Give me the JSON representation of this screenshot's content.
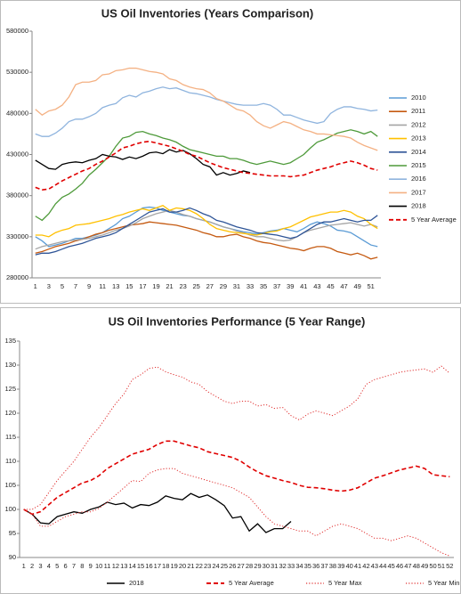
{
  "chart_data": [
    {
      "type": "line",
      "title": "US Oil Inventories (Years Comparison)",
      "legend": "right",
      "categories": [
        1,
        null,
        3,
        null,
        5,
        null,
        7,
        null,
        9,
        null,
        11,
        null,
        13,
        null,
        15,
        null,
        17,
        null,
        19,
        null,
        21,
        null,
        23,
        null,
        25,
        null,
        27,
        null,
        29,
        null,
        31,
        null,
        33,
        null,
        35,
        null,
        37,
        null,
        39,
        null,
        41,
        null,
        43,
        null,
        45,
        null,
        47,
        null,
        49,
        null,
        51,
        null
      ],
      "ylim": [
        280000,
        580000
      ],
      "yticks": [
        280000,
        330000,
        380000,
        430000,
        480000,
        530000,
        580000
      ],
      "series": [
        {
          "name": "2010",
          "color": "#5b9bd5",
          "line_style": "solid",
          "values": [
            330000,
            325000,
            318000,
            320000,
            322000,
            325000,
            328000,
            328000,
            330000,
            332000,
            335000,
            340000,
            345000,
            352000,
            355000,
            360000,
            365000,
            366000,
            365000,
            362000,
            360000,
            358000,
            356000,
            355000,
            352000,
            350000,
            348000,
            345000,
            342000,
            340000,
            338000,
            336000,
            335000,
            333000,
            335000,
            337000,
            338000,
            340000,
            338000,
            336000,
            340000,
            345000,
            348000,
            346000,
            343000,
            338000,
            337000,
            335000,
            330000,
            325000,
            320000,
            318000
          ]
        },
        {
          "name": "2011",
          "color": "#c55a11",
          "line_style": "solid",
          "values": [
            310000,
            312000,
            315000,
            318000,
            320000,
            322000,
            325000,
            327000,
            330000,
            333000,
            335000,
            338000,
            340000,
            342000,
            344000,
            345000,
            346000,
            348000,
            347000,
            346000,
            345000,
            344000,
            342000,
            340000,
            338000,
            335000,
            333000,
            330000,
            330000,
            332000,
            333000,
            330000,
            328000,
            325000,
            323000,
            322000,
            320000,
            318000,
            316000,
            315000,
            313000,
            316000,
            318000,
            318000,
            316000,
            312000,
            310000,
            308000,
            310000,
            307000,
            303000,
            305000
          ]
        },
        {
          "name": "2012",
          "color": "#a5a5a5",
          "line_style": "solid",
          "values": [
            315000,
            318000,
            320000,
            322000,
            324000,
            325000,
            326000,
            327000,
            328000,
            330000,
            332000,
            335000,
            338000,
            340000,
            343000,
            347000,
            352000,
            355000,
            358000,
            360000,
            362000,
            360000,
            357000,
            355000,
            352000,
            350000,
            348000,
            345000,
            342000,
            340000,
            337000,
            335000,
            332000,
            330000,
            330000,
            328000,
            326000,
            325000,
            326000,
            330000,
            335000,
            338000,
            340000,
            342000,
            344000,
            345000,
            346000,
            347000,
            345000,
            343000,
            345000,
            342000
          ]
        },
        {
          "name": "2013",
          "color": "#ffc000",
          "line_style": "solid",
          "values": [
            332000,
            332000,
            330000,
            335000,
            338000,
            340000,
            344000,
            345000,
            346000,
            348000,
            350000,
            352000,
            355000,
            357000,
            360000,
            362000,
            364000,
            362000,
            365000,
            368000,
            362000,
            365000,
            364000,
            362000,
            358000,
            352000,
            345000,
            340000,
            338000,
            336000,
            335000,
            334000,
            333000,
            332000,
            334000,
            336000,
            337000,
            340000,
            342000,
            346000,
            350000,
            354000,
            356000,
            358000,
            360000,
            360000,
            362000,
            360000,
            355000,
            352000,
            345000,
            340000
          ]
        },
        {
          "name": "2014",
          "color": "#2f5597",
          "line_style": "solid",
          "values": [
            308000,
            310000,
            310000,
            312000,
            315000,
            318000,
            320000,
            322000,
            325000,
            328000,
            330000,
            332000,
            335000,
            340000,
            345000,
            350000,
            355000,
            360000,
            362000,
            364000,
            360000,
            360000,
            362000,
            365000,
            362000,
            358000,
            355000,
            350000,
            348000,
            345000,
            342000,
            340000,
            338000,
            335000,
            334000,
            333000,
            332000,
            330000,
            328000,
            330000,
            335000,
            340000,
            345000,
            348000,
            348000,
            350000,
            352000,
            350000,
            348000,
            350000,
            350000,
            356000
          ]
        },
        {
          "name": "2015",
          "color": "#4e9a3a",
          "line_style": "solid",
          "values": [
            355000,
            350000,
            358000,
            370000,
            378000,
            382000,
            388000,
            395000,
            405000,
            412000,
            420000,
            428000,
            440000,
            450000,
            452000,
            457000,
            458000,
            455000,
            453000,
            450000,
            448000,
            445000,
            440000,
            436000,
            434000,
            432000,
            430000,
            428000,
            428000,
            425000,
            425000,
            423000,
            420000,
            418000,
            420000,
            422000,
            420000,
            418000,
            420000,
            425000,
            430000,
            438000,
            445000,
            448000,
            452000,
            456000,
            458000,
            460000,
            458000,
            455000,
            458000,
            452000
          ]
        },
        {
          "name": "2016",
          "color": "#8fb4de",
          "line_style": "solid",
          "values": [
            455000,
            452000,
            452000,
            456000,
            462000,
            470000,
            473000,
            473000,
            476000,
            480000,
            487000,
            490000,
            492000,
            499000,
            502000,
            500000,
            505000,
            507000,
            510000,
            512000,
            510000,
            511000,
            508000,
            505000,
            504000,
            502000,
            500000,
            497000,
            495000,
            493000,
            491000,
            490000,
            490000,
            490000,
            492000,
            490000,
            485000,
            478000,
            478000,
            475000,
            472000,
            470000,
            468000,
            470000,
            480000,
            485000,
            488000,
            488000,
            486000,
            485000,
            483000,
            484000
          ]
        },
        {
          "name": "2017",
          "color": "#f4b183",
          "line_style": "solid",
          "values": [
            485000,
            478000,
            483000,
            485000,
            490000,
            500000,
            515000,
            518000,
            518000,
            520000,
            527000,
            528000,
            532000,
            533000,
            535000,
            535000,
            533000,
            531000,
            530000,
            528000,
            522000,
            520000,
            515000,
            512000,
            510000,
            509000,
            505000,
            498000,
            495000,
            490000,
            485000,
            483000,
            478000,
            470000,
            465000,
            462000,
            466000,
            470000,
            468000,
            464000,
            460000,
            458000,
            455000,
            455000,
            454000,
            453000,
            452000,
            450000,
            445000,
            441000,
            438000,
            435000
          ]
        },
        {
          "name": "2018",
          "color": "#000000",
          "line_style": "solid",
          "values": [
            423000,
            418000,
            413000,
            412000,
            418000,
            420000,
            421000,
            420000,
            423000,
            425000,
            430000,
            428000,
            427000,
            424000,
            427000,
            425000,
            428000,
            432000,
            433000,
            431000,
            436000,
            433000,
            435000,
            431000,
            425000,
            418000,
            415000,
            405000,
            408000,
            405000,
            407000,
            410000,
            408000,
            null,
            null,
            null,
            null,
            null,
            null,
            null,
            null,
            null,
            null,
            null,
            null,
            null,
            null,
            null,
            null,
            null,
            null,
            null
          ]
        },
        {
          "name": "5 Year Average",
          "color": "#e00000",
          "line_style": "dashed",
          "values": [
            390000,
            387000,
            388000,
            393000,
            398000,
            402000,
            406000,
            410000,
            413000,
            418000,
            422000,
            427000,
            432000,
            438000,
            440000,
            443000,
            445000,
            446000,
            444000,
            442000,
            440000,
            437000,
            434000,
            430000,
            428000,
            424000,
            420000,
            417000,
            414000,
            412000,
            410000,
            408000,
            407000,
            406000,
            405000,
            404000,
            404000,
            404000,
            403000,
            404000,
            405000,
            408000,
            411000,
            413000,
            415000,
            418000,
            420000,
            422000,
            420000,
            417000,
            413000,
            411000
          ]
        }
      ]
    },
    {
      "type": "line",
      "title": "US Oil Inventories Performance (5 Year Range)",
      "legend": "bottom",
      "categories": [
        1,
        2,
        3,
        4,
        5,
        6,
        7,
        8,
        9,
        10,
        11,
        12,
        13,
        14,
        15,
        16,
        17,
        18,
        19,
        20,
        21,
        22,
        23,
        24,
        25,
        26,
        27,
        28,
        29,
        30,
        31,
        32,
        33,
        34,
        35,
        36,
        37,
        38,
        39,
        40,
        41,
        42,
        43,
        44,
        45,
        46,
        47,
        48,
        49,
        50,
        51,
        52
      ],
      "ylim": [
        90,
        135
      ],
      "yticks": [
        90,
        95,
        100,
        105,
        110,
        115,
        120,
        125,
        130,
        135
      ],
      "series": [
        {
          "name": "2018",
          "color": "#000000",
          "line_style": "solid",
          "values": [
            100,
            99,
            97.2,
            97,
            98.5,
            99,
            99.5,
            99.2,
            100,
            100.5,
            101.5,
            101,
            101.3,
            100.3,
            101,
            100.8,
            101.5,
            102.8,
            102.3,
            102,
            103.3,
            102.5,
            103,
            102,
            100.8,
            98.2,
            98.5,
            95.5,
            97,
            95.2,
            96,
            96,
            97.5,
            null,
            null,
            null,
            null,
            null,
            null,
            null,
            null,
            null,
            null,
            null,
            null,
            null,
            null,
            null,
            null,
            null,
            null,
            null
          ]
        },
        {
          "name": "5 Year Average",
          "color": "#e00000",
          "line_style": "dashed",
          "values": [
            100,
            99,
            99.5,
            101,
            102.5,
            103.5,
            104.5,
            105.5,
            106,
            107,
            108.5,
            109.5,
            110.5,
            111.5,
            112,
            112.5,
            113.5,
            114.2,
            114.2,
            113.7,
            113.2,
            112.8,
            112,
            111.6,
            111.2,
            110.8,
            110,
            108.8,
            107.8,
            107,
            106.5,
            106,
            105.6,
            105,
            104.6,
            104.5,
            104.3,
            104,
            103.8,
            104,
            104.5,
            105.5,
            106.5,
            107,
            107.6,
            108.2,
            108.6,
            109,
            108.5,
            107.2,
            107,
            106.8
          ]
        },
        {
          "name": "5 Year Max",
          "color": "#e03030",
          "line_style": "dotted",
          "values": [
            100,
            100,
            101,
            103.5,
            106,
            108,
            110,
            112.5,
            115,
            117,
            119.5,
            122,
            124,
            127,
            128,
            129.3,
            129.6,
            128.6,
            128,
            127.5,
            126.5,
            126,
            124.5,
            123.5,
            122.5,
            122,
            122.5,
            122.5,
            121.5,
            121.8,
            121,
            121.2,
            119.5,
            118.6,
            119.8,
            120.5,
            120,
            119.5,
            120.5,
            121.5,
            123,
            126,
            127,
            127.5,
            128,
            128.5,
            128.8,
            129,
            129.2,
            128.5,
            129.8,
            128.3
          ]
        },
        {
          "name": "5 Year Min",
          "color": "#e03030",
          "line_style": "dotted",
          "values": [
            100,
            99,
            96.5,
            96.5,
            97.5,
            98.5,
            99,
            99.5,
            99.5,
            100.2,
            101.5,
            103,
            104.5,
            106,
            105.8,
            107.5,
            108.2,
            108.5,
            108.5,
            107.5,
            107,
            106.5,
            106,
            105.5,
            105,
            104.5,
            103.5,
            102.5,
            100.5,
            98.5,
            97,
            96.5,
            96,
            95.5,
            95.5,
            94.5,
            95.5,
            96.5,
            97,
            96.5,
            96,
            95,
            94,
            94,
            93.5,
            94,
            94.5,
            94,
            93,
            92,
            91,
            90.3
          ]
        }
      ]
    }
  ]
}
